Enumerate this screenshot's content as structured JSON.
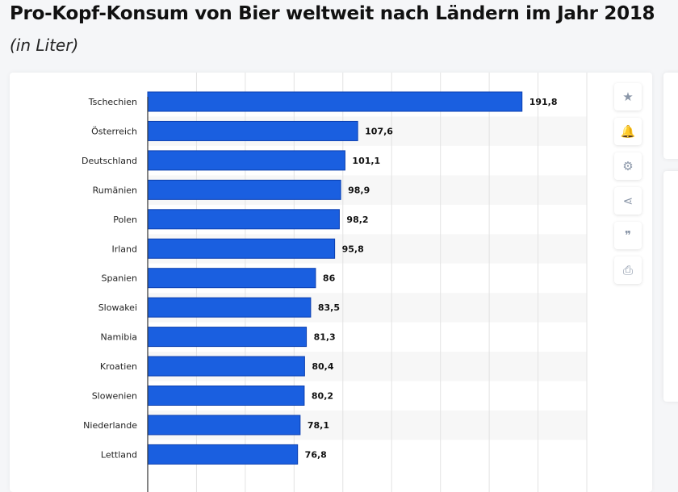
{
  "header": {
    "title": "Pro-Kopf-Konsum von Bier weltweit nach Ländern im Jahr 2018",
    "subtitle": "(in Liter)"
  },
  "toolbar": [
    {
      "name": "star-icon",
      "glyph": "★"
    },
    {
      "name": "bell-icon",
      "glyph": "🔔"
    },
    {
      "name": "gear-icon",
      "glyph": "⚙"
    },
    {
      "name": "share-icon",
      "glyph": "⋖"
    },
    {
      "name": "quote-icon",
      "glyph": "❞"
    },
    {
      "name": "print-icon",
      "glyph": "⎙"
    }
  ],
  "chart_data": {
    "type": "bar",
    "orientation": "horizontal",
    "title": "Pro-Kopf-Konsum von Bier weltweit nach Ländern im Jahr 2018",
    "ylabel": "in Liter",
    "categories": [
      "Tschechien",
      "Österreich",
      "Deutschland",
      "Rumänien",
      "Polen",
      "Irland",
      "Spanien",
      "Slowakei",
      "Namibia",
      "Kroatien",
      "Slowenien",
      "Niederlande",
      "Lettland"
    ],
    "values": [
      191.8,
      107.6,
      101.1,
      98.9,
      98.2,
      95.8,
      86,
      83.5,
      81.3,
      80.4,
      80.2,
      78.1,
      76.8
    ],
    "labels": [
      "191,8",
      "107,6",
      "101,1",
      "98,9",
      "98,2",
      "95,8",
      "86",
      "83,5",
      "81,3",
      "80,4",
      "80,2",
      "78,1",
      "76,8"
    ],
    "xlim": [
      0,
      225
    ],
    "grid": true,
    "bar_color": "#1a5fe0"
  }
}
